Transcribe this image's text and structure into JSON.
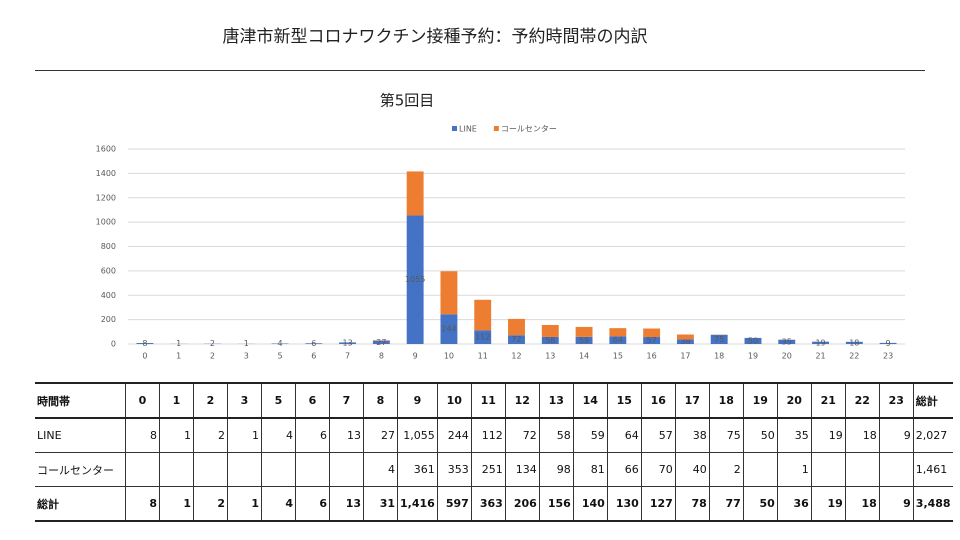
{
  "title": "唐津市新型コロナワクチン接種予約：予約時間帯の内訳",
  "chart_data": {
    "type": "bar",
    "stacked": true,
    "title": "第5回目",
    "categories": [
      "0",
      "1",
      "2",
      "3",
      "5",
      "6",
      "7",
      "8",
      "9",
      "10",
      "11",
      "12",
      "13",
      "14",
      "15",
      "16",
      "17",
      "18",
      "19",
      "20",
      "21",
      "22",
      "23"
    ],
    "series": [
      {
        "name": "LINE",
        "color": "#4472c4",
        "data_labels": true,
        "values": [
          8,
          1,
          2,
          1,
          4,
          6,
          13,
          27,
          1055,
          244,
          112,
          72,
          58,
          59,
          64,
          57,
          38,
          75,
          50,
          35,
          19,
          18,
          9
        ]
      },
      {
        "name": "コールセンター",
        "color": "#ed7d31",
        "data_labels": false,
        "values": [
          null,
          null,
          null,
          null,
          null,
          null,
          null,
          4,
          361,
          353,
          251,
          134,
          98,
          81,
          66,
          70,
          40,
          2,
          null,
          1,
          null,
          null,
          null
        ]
      }
    ],
    "ylim": [
      0,
      1600
    ],
    "yticks": [
      0,
      200,
      400,
      600,
      800,
      1000,
      1200,
      1400,
      1600
    ],
    "grid": true,
    "legend": "top"
  },
  "table": {
    "header": [
      "時間帯",
      "0",
      "1",
      "2",
      "3",
      "5",
      "6",
      "7",
      "8",
      "9",
      "10",
      "11",
      "12",
      "13",
      "14",
      "15",
      "16",
      "17",
      "18",
      "19",
      "20",
      "21",
      "22",
      "23",
      "総計"
    ],
    "rows": [
      [
        "LINE",
        "8",
        "1",
        "2",
        "1",
        "4",
        "6",
        "13",
        "27",
        "1,055",
        "244",
        "112",
        "72",
        "58",
        "59",
        "64",
        "57",
        "38",
        "75",
        "50",
        "35",
        "19",
        "18",
        "9",
        "2,027"
      ],
      [
        "コールセンター",
        null,
        null,
        null,
        null,
        null,
        null,
        null,
        "4",
        "361",
        "353",
        "251",
        "134",
        "98",
        "81",
        "66",
        "70",
        "40",
        "2",
        null,
        "1",
        null,
        null,
        null,
        "1,461"
      ],
      [
        "総計",
        "8",
        "1",
        "2",
        "1",
        "4",
        "6",
        "13",
        "31",
        "1,416",
        "597",
        "363",
        "206",
        "156",
        "140",
        "130",
        "127",
        "78",
        "77",
        "50",
        "36",
        "19",
        "18",
        "9",
        "3,488"
      ]
    ]
  }
}
